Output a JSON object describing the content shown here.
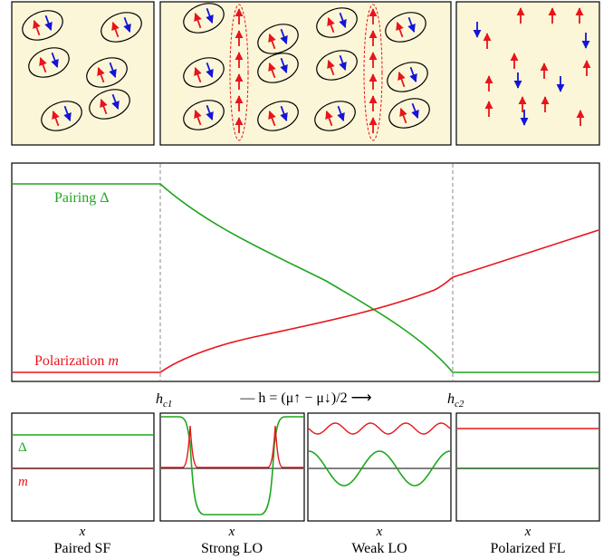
{
  "colors": {
    "panel_fill": "#fbf6d8",
    "spin_up": "#e8141b",
    "spin_down": "#1515d8",
    "pairing_curve": "#1fa71f",
    "polarization_curve": "#e8141b",
    "zero_line_dark": "#6b0d0d",
    "guide_line": "#888888"
  },
  "main_plot": {
    "pairing_label": "Pairing Δ",
    "polarization_label_prefix": "Polarization ",
    "polarization_label_symbol": "m",
    "hc1_base": "h",
    "hc1_sub": "c1",
    "hc2_base": "h",
    "hc2_sub": "c2",
    "axis_formula": "— h = (μ↑ − μ↓)/2 ⟶"
  },
  "mini_panels": [
    {
      "id": "paired-sf",
      "x_label": "x",
      "title": "Paired SF",
      "delta_label": "Δ",
      "m_label": "m"
    },
    {
      "id": "strong-lo",
      "x_label": "x",
      "title": "Strong LO"
    },
    {
      "id": "weak-lo",
      "x_label": "x",
      "title": "Weak LO"
    },
    {
      "id": "polarized-fl",
      "x_label": "x",
      "title": "Polarized FL"
    }
  ],
  "spin_panels": [
    {
      "id": "paired",
      "icon": "paired-spin-diagram"
    },
    {
      "id": "lo",
      "icon": "lo-domain-wall-diagram"
    },
    {
      "id": "polarized",
      "icon": "free-spin-diagram"
    }
  ]
}
